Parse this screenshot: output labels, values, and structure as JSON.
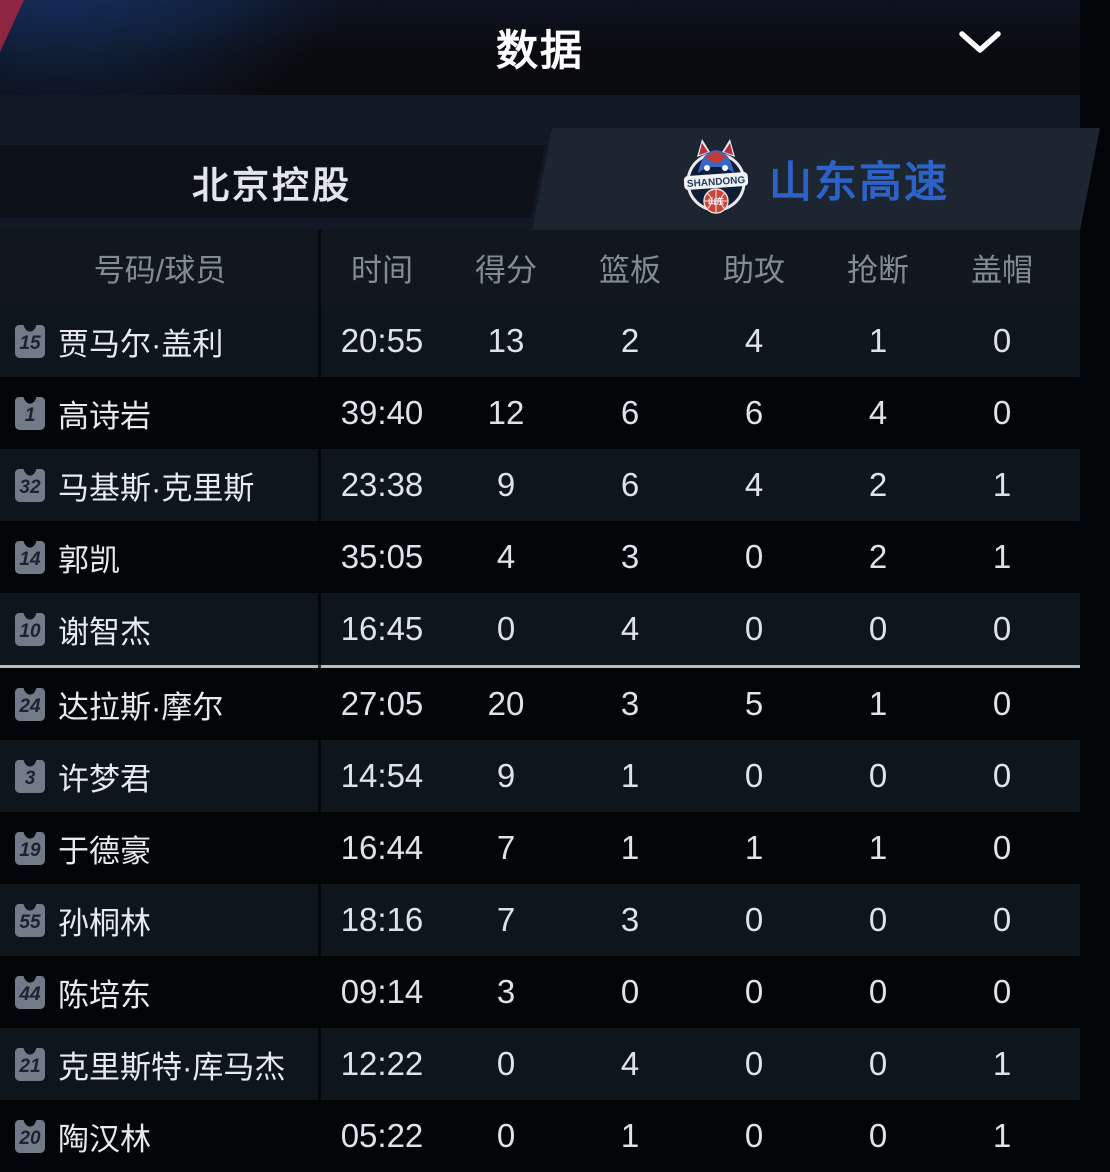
{
  "header": {
    "title": "数据"
  },
  "tabs": {
    "left": {
      "label": "北京控股"
    },
    "right": {
      "label": "山东高速",
      "logo_text": "SHANDONG",
      "logo_subtext": "山东"
    }
  },
  "table": {
    "columns": [
      "号码/球员",
      "时间",
      "得分",
      "篮板",
      "助攻",
      "抢断",
      "盖帽"
    ],
    "starters_count": 5,
    "rows": [
      {
        "number": "15",
        "name": "贾马尔·盖利",
        "time": "20:55",
        "points": "13",
        "rebounds": "2",
        "assists": "4",
        "steals": "1",
        "blocks": "0"
      },
      {
        "number": "1",
        "name": "高诗岩",
        "time": "39:40",
        "points": "12",
        "rebounds": "6",
        "assists": "6",
        "steals": "4",
        "blocks": "0"
      },
      {
        "number": "32",
        "name": "马基斯·克里斯",
        "time": "23:38",
        "points": "9",
        "rebounds": "6",
        "assists": "4",
        "steals": "2",
        "blocks": "1"
      },
      {
        "number": "14",
        "name": "郭凯",
        "time": "35:05",
        "points": "4",
        "rebounds": "3",
        "assists": "0",
        "steals": "2",
        "blocks": "1"
      },
      {
        "number": "10",
        "name": "谢智杰",
        "time": "16:45",
        "points": "0",
        "rebounds": "4",
        "assists": "0",
        "steals": "0",
        "blocks": "0"
      },
      {
        "number": "24",
        "name": "达拉斯·摩尔",
        "time": "27:05",
        "points": "20",
        "rebounds": "3",
        "assists": "5",
        "steals": "1",
        "blocks": "0"
      },
      {
        "number": "3",
        "name": "许梦君",
        "time": "14:54",
        "points": "9",
        "rebounds": "1",
        "assists": "0",
        "steals": "0",
        "blocks": "0"
      },
      {
        "number": "19",
        "name": "于德豪",
        "time": "16:44",
        "points": "7",
        "rebounds": "1",
        "assists": "1",
        "steals": "1",
        "blocks": "0"
      },
      {
        "number": "55",
        "name": "孙桐林",
        "time": "18:16",
        "points": "7",
        "rebounds": "3",
        "assists": "0",
        "steals": "0",
        "blocks": "0"
      },
      {
        "number": "44",
        "name": "陈培东",
        "time": "09:14",
        "points": "3",
        "rebounds": "0",
        "assists": "0",
        "steals": "0",
        "blocks": "0"
      },
      {
        "number": "21",
        "name": "克里斯特·库马杰",
        "time": "12:22",
        "points": "0",
        "rebounds": "4",
        "assists": "0",
        "steals": "0",
        "blocks": "1"
      },
      {
        "number": "20",
        "name": "陶汉林",
        "time": "05:22",
        "points": "0",
        "rebounds": "1",
        "assists": "0",
        "steals": "0",
        "blocks": "1"
      }
    ]
  },
  "colors": {
    "team_blue": "#2d62c9",
    "logo_red": "#c8453c",
    "separator_gray": "#b6bbc1",
    "row_navy": "#0d151d",
    "row_black": "#020508"
  }
}
